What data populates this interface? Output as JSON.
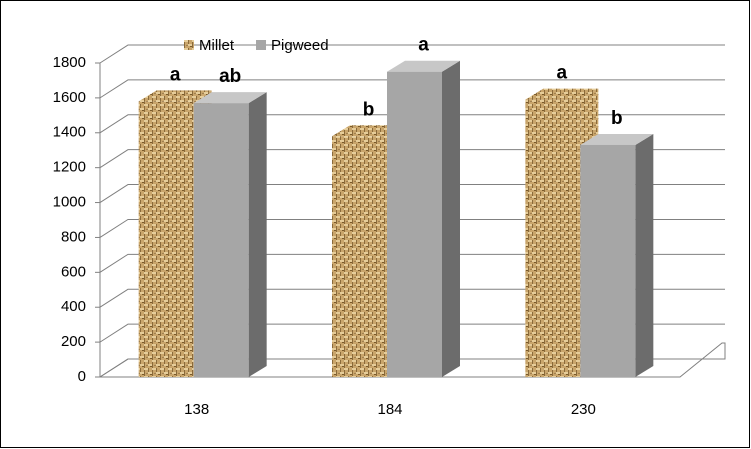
{
  "chart_data": {
    "type": "bar3d",
    "categories": [
      "138",
      "184",
      "230"
    ],
    "series": [
      {
        "name": "Millet",
        "color": "#c9a56b",
        "pattern": "woven",
        "values": [
          1580,
          1380,
          1590
        ],
        "letters": [
          "a",
          "b",
          "a"
        ]
      },
      {
        "name": "Pigweed",
        "color": "#a6a6a6",
        "values": [
          1570,
          1750,
          1330
        ],
        "letters": [
          "ab",
          "a",
          "b"
        ]
      }
    ],
    "ylim": [
      0,
      1800
    ],
    "yticks": [
      0,
      200,
      400,
      600,
      800,
      1000,
      1200,
      1400,
      1600,
      1800
    ],
    "grid": true,
    "legend": "top"
  }
}
